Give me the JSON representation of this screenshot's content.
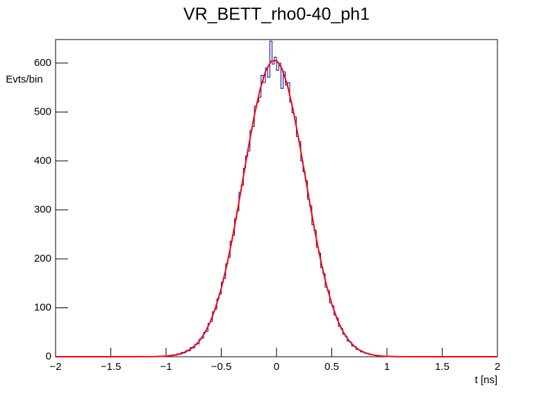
{
  "chart_data": {
    "type": "histogram",
    "title": "VR_BETT_rho0-40_ph1",
    "x_label": "t [ns]",
    "y_label": "Evts/bin",
    "color": "#000099",
    "xlim": [
      -2,
      2
    ],
    "ylim": [
      0,
      648
    ],
    "xticks": [
      {
        "value": -2,
        "label": "−2"
      },
      {
        "value": -1.5,
        "label": "−1.5"
      },
      {
        "value": -1,
        "label": "−1"
      },
      {
        "value": -0.5,
        "label": "−0.5"
      },
      0,
      0.5,
      1,
      1.5,
      2
    ],
    "yticks": [
      0,
      100,
      200,
      300,
      400,
      500,
      600
    ],
    "bins": [
      -2,
      -1.98,
      -1.96,
      -1.94,
      -1.92,
      -1.9,
      -1.88,
      -1.86,
      -1.84,
      -1.82,
      -1.8,
      -1.78,
      -1.76,
      -1.74,
      -1.72,
      -1.7,
      -1.68,
      -1.66,
      -1.64,
      -1.62,
      -1.6,
      -1.58,
      -1.56,
      -1.54,
      -1.52,
      -1.5,
      -1.48,
      -1.46,
      -1.44,
      -1.42,
      -1.4,
      -1.38,
      -1.36,
      -1.34,
      -1.32,
      -1.3,
      -1.28,
      -1.26,
      -1.24,
      -1.22,
      -1.2,
      -1.18,
      -1.16,
      -1.14,
      -1.12,
      -1.1,
      -1.08,
      -1.06,
      -1.04,
      -1.02,
      -1,
      -0.98,
      -0.96,
      -0.94,
      -0.92,
      -0.9,
      -0.88,
      -0.86,
      -0.84,
      -0.82,
      -0.8,
      -0.78,
      -0.76,
      -0.74,
      -0.72,
      -0.7,
      -0.68,
      -0.66,
      -0.64,
      -0.62,
      -0.6,
      -0.58,
      -0.56,
      -0.54,
      -0.52,
      -0.5,
      -0.48,
      -0.46,
      -0.44,
      -0.42,
      -0.4,
      -0.38,
      -0.36,
      -0.34,
      -0.32,
      -0.3,
      -0.28,
      -0.26,
      -0.24,
      -0.22,
      -0.2,
      -0.18,
      -0.16,
      -0.14,
      -0.12,
      -0.1,
      -0.08,
      -0.06,
      -0.04,
      -0.02,
      0,
      0.02,
      0.04,
      0.06,
      0.08,
      0.1,
      0.12,
      0.14,
      0.16,
      0.18,
      0.2,
      0.22,
      0.24,
      0.26,
      0.28,
      0.3,
      0.32,
      0.34,
      0.36,
      0.38,
      0.4,
      0.42,
      0.44,
      0.46,
      0.48,
      0.5,
      0.52,
      0.54,
      0.56,
      0.58,
      0.6,
      0.62,
      0.64,
      0.66,
      0.68,
      0.7,
      0.72,
      0.74,
      0.76,
      0.78,
      0.8,
      0.82,
      0.84,
      0.86,
      0.88,
      0.9,
      0.92,
      0.94,
      0.96,
      0.98,
      1,
      1.02,
      1.04,
      1.06,
      1.08,
      1.1,
      1.12,
      1.14,
      1.16,
      1.18,
      1.2,
      1.22,
      1.24,
      1.26,
      1.28,
      1.3,
      1.32,
      1.34,
      1.36,
      1.38,
      1.4,
      1.42,
      1.44,
      1.46,
      1.48,
      1.5,
      1.52,
      1.54,
      1.56,
      1.58,
      1.6,
      1.62,
      1.64,
      1.66,
      1.68,
      1.7,
      1.72,
      1.74,
      1.76,
      1.78,
      1.8,
      1.82,
      1.84,
      1.86,
      1.88,
      1.9,
      1.92,
      1.94,
      1.96,
      1.98,
      2
    ],
    "values": [
      0,
      0,
      0,
      0,
      0,
      0,
      0,
      0,
      0,
      0,
      0,
      0,
      0,
      0,
      0,
      0,
      0,
      0,
      0,
      0,
      0,
      0,
      0,
      0,
      0,
      0,
      0,
      0,
      0,
      0,
      0,
      0,
      0,
      0,
      0,
      0,
      0,
      0,
      0,
      0,
      0,
      0,
      0,
      0,
      0,
      0,
      0,
      0,
      0,
      1,
      1,
      2,
      2,
      4,
      3,
      6,
      5,
      9,
      8,
      13,
      12,
      19,
      18,
      25,
      26,
      36,
      38,
      50,
      52,
      68,
      72,
      92,
      97,
      118,
      128,
      152,
      160,
      190,
      203,
      236,
      248,
      282,
      298,
      336,
      350,
      385,
      410,
      420,
      462,
      470,
      512,
      520,
      530,
      575,
      560,
      590,
      571,
      645,
      598,
      612,
      585,
      600,
      548,
      582,
      555,
      560,
      520,
      498,
      490,
      450,
      440,
      400,
      378,
      360,
      322,
      308,
      270,
      258,
      224,
      212,
      182,
      170,
      142,
      135,
      110,
      104,
      85,
      79,
      62,
      58,
      46,
      42,
      32,
      30,
      22,
      21,
      15,
      14,
      10,
      9,
      7,
      6,
      4,
      4,
      3,
      2,
      2,
      1,
      1,
      0,
      0,
      0,
      0,
      0,
      0,
      0,
      0,
      0,
      0,
      0,
      0,
      0,
      0,
      0,
      0,
      0,
      0,
      0,
      0,
      0,
      0,
      0,
      0,
      0,
      0,
      0,
      0,
      0,
      0,
      0,
      0,
      0,
      0,
      0,
      0,
      0,
      0,
      0,
      0,
      0,
      0,
      0,
      0,
      0,
      0,
      0,
      0,
      0,
      0,
      0
    ],
    "fit": {
      "type": "line",
      "color": "#ff0000",
      "x": [
        -2,
        -1.5,
        -1.1,
        -1,
        -0.95,
        -0.9,
        -0.85,
        -0.8,
        -0.75,
        -0.7,
        -0.65,
        -0.6,
        -0.55,
        -0.5,
        -0.45,
        -0.4,
        -0.35,
        -0.3,
        -0.25,
        -0.2,
        -0.15,
        -0.1,
        -0.05,
        0,
        0.05,
        0.1,
        0.15,
        0.2,
        0.25,
        0.3,
        0.35,
        0.4,
        0.45,
        0.5,
        0.55,
        0.6,
        0.65,
        0.7,
        0.75,
        0.8,
        0.85,
        0.9,
        0.95,
        1,
        1.1,
        1.5,
        2
      ],
      "values": [
        0,
        0,
        0.4,
        1.3,
        2.4,
        4.3,
        7.5,
        12.5,
        20.3,
        31.8,
        48.3,
        71,
        101.2,
        139.7,
        186.7,
        241.7,
        303.1,
        368.2,
        433.2,
        493.7,
        545,
        582.7,
        603.5,
        605.5,
        588.3,
        553.8,
        504.9,
        445.8,
        381.3,
        315.9,
        253.5,
        197.1,
        148.4,
        108.2,
        76.4,
        52.3,
        34.7,
        22.3,
        13.8,
        8.3,
        4.9,
        2.7,
        1.5,
        0.8,
        0.2,
        0,
        0
      ]
    }
  }
}
